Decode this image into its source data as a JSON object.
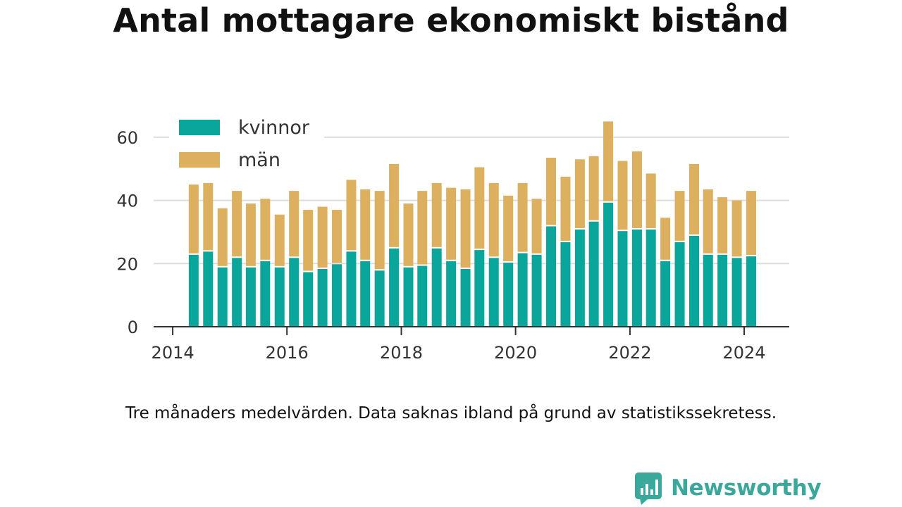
{
  "title": "Antal mottagare ekonomiskt bistånd",
  "note": "Tre månaders medelvärden. Data saknas ibland på grund av statistikssekretess.",
  "brand": {
    "name": "Newsworthy"
  },
  "colors": {
    "kvinnor": "#0aa59b",
    "man": "#dcb05e",
    "grid": "#dddddd",
    "axis": "#333333",
    "brand": "#3aa89b"
  },
  "chart_data": {
    "type": "bar",
    "stacked": true,
    "x": [
      "2014-05-15",
      "2014-08-15",
      "2014-11-15",
      "2015-02-15",
      "2015-05-15",
      "2015-08-15",
      "2015-11-15",
      "2016-02-15",
      "2016-05-15",
      "2016-08-15",
      "2016-11-15",
      "2017-02-15",
      "2017-05-15",
      "2017-08-15",
      "2017-11-15",
      "2018-02-15",
      "2018-05-15",
      "2018-08-15",
      "2018-11-15",
      "2019-02-15",
      "2019-05-15",
      "2019-08-15",
      "2019-11-15",
      "2020-02-15",
      "2020-05-15",
      "2020-08-15",
      "2020-11-15",
      "2021-02-15",
      "2021-05-15",
      "2021-08-15",
      "2021-11-15",
      "2022-02-15",
      "2022-05-15",
      "2022-08-15",
      "2022-11-15",
      "2023-02-15",
      "2023-05-15",
      "2023-08-15",
      "2023-11-15",
      "2024-02-15"
    ],
    "series": [
      {
        "name": "kvinnor",
        "values": [
          23,
          24,
          19,
          22,
          19,
          21,
          19,
          22,
          17.5,
          18.5,
          20,
          24,
          21,
          18,
          25,
          19,
          19.5,
          25,
          21,
          18.5,
          24.5,
          22,
          20.5,
          23.5,
          23,
          32,
          27,
          31,
          33.5,
          39.5,
          30.5,
          31,
          31,
          21,
          27,
          29,
          23,
          23,
          22,
          22.5
        ]
      },
      {
        "name": "män",
        "values": [
          22,
          21.5,
          18.5,
          21,
          20,
          19.5,
          16.5,
          21,
          19.5,
          19.5,
          17,
          22.5,
          22.5,
          25,
          26.5,
          20,
          23.5,
          20.5,
          23,
          25,
          26,
          23.5,
          21,
          22,
          17.5,
          21.5,
          20.5,
          22,
          20.5,
          25.5,
          22,
          24.5,
          17.5,
          13.5,
          16,
          22.5,
          20.5,
          18,
          18,
          20.5
        ]
      }
    ],
    "x_ticks": [
      "2014",
      "2016",
      "2018",
      "2020",
      "2022",
      "2024"
    ],
    "y_ticks": [
      0,
      20,
      40,
      60
    ],
    "ylim": [
      0,
      70
    ],
    "xlim": [
      "2013-09-01",
      "2024-10-15"
    ],
    "legend": {
      "position": "top-left",
      "entries": [
        "kvinnor",
        "män"
      ]
    },
    "grid": true,
    "title": "",
    "xlabel": "",
    "ylabel": ""
  }
}
